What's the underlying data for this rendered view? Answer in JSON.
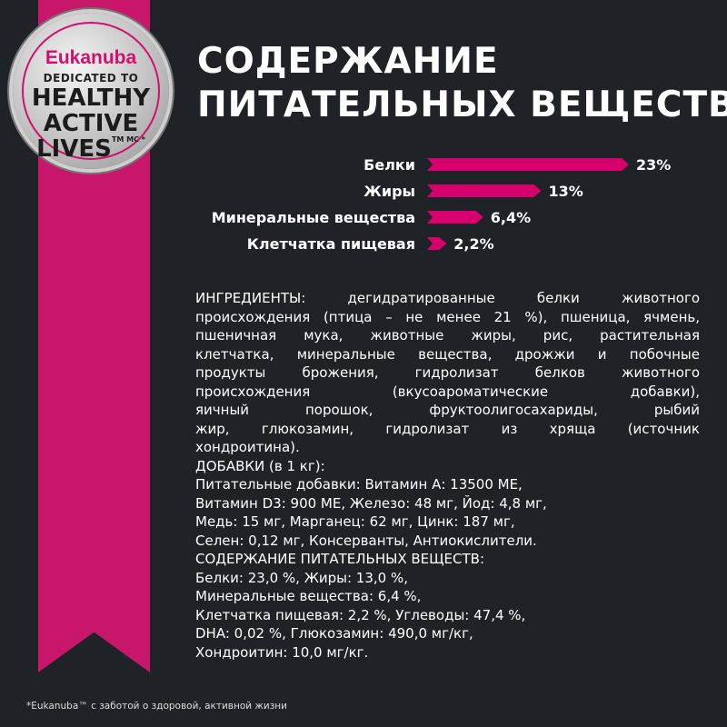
{
  "badge": {
    "brand": "Eukanuba",
    "dedicated": "DEDICATED TO",
    "line1": "HEALTHY",
    "line2": "ACTIVE",
    "line3": "LIVES",
    "tm": "TM MC *"
  },
  "title": {
    "line1": "СОДЕРЖАНИЕ",
    "line2": "ПИТАТЕЛЬНЫХ ВЕЩЕСТВ"
  },
  "colors": {
    "background": "#1f2226",
    "accent": "#d6006e",
    "ribbon": "#c8176b"
  },
  "chart_data": {
    "type": "bar",
    "orientation": "horizontal",
    "categories": [
      "Белки",
      "Жиры",
      "Минеральные вещества",
      "Клетчатка пищевая"
    ],
    "values": [
      23,
      13,
      6.4,
      2.2
    ],
    "labels": [
      "23%",
      "13%",
      "6,4%",
      "2,2%"
    ],
    "unit": "%"
  },
  "ingredients": {
    "lines": [
      {
        "t": "ИНГРЕДИЕНТЫ: дегидратированные белки животного",
        "j": true
      },
      {
        "t": "происхождения (птица – не менее 21 %), пшеница, ячмень,",
        "j": true
      },
      {
        "t": "пшеничная мука, животные жиры, рис, растительная",
        "j": true
      },
      {
        "t": "клетчатка, минеральные вещества, дрожжи и побочные",
        "j": true
      },
      {
        "t": "продукты брожения, гидролизат белков животного",
        "j": true
      },
      {
        "t": "происхождения (вкусоароматические добавки),",
        "j": true
      },
      {
        "t": "яичный порошок, фруктоолигосахариды, рыбий",
        "j": true
      },
      {
        "t": "жир, глюкозамин, гидролизат из хряща (источник",
        "j": true
      },
      {
        "t": "хондроитина).",
        "j": false
      },
      {
        "t": "ДОБАВКИ (в 1 кг):",
        "j": false
      },
      {
        "t": "Питательные добавки: Витамин А: 13500 МЕ,",
        "j": false
      },
      {
        "t": "Витамин D3: 900 МЕ, Железо: 48 мг, Йод: 4,8 мг,",
        "j": false
      },
      {
        "t": "Медь: 15 мг, Марганец: 62 мг, Цинк: 187 мг,",
        "j": false
      },
      {
        "t": "Селен: 0,12 мг, Консерванты, Антиокислители.",
        "j": false
      },
      {
        "t": "СОДЕРЖАНИЕ ПИТАТЕЛЬНЫХ ВЕЩЕСТВ:",
        "j": false
      },
      {
        "t": "Белки: 23,0 %, Жиры: 13,0 %,",
        "j": false
      },
      {
        "t": "Минеральные вещества: 6,4 %,",
        "j": false
      },
      {
        "t": "Клетчатка пищевая: 2,2 %, Углеводы: 47,4 %,",
        "j": false
      },
      {
        "t": "DHA: 0,02 %, Глюкозамин: 490,0 мг/кг,",
        "j": false
      },
      {
        "t": "Хондроитин: 10,0 мг/кг.",
        "j": false
      }
    ]
  },
  "footnote": "*Eukanuba™ с заботой о здоровой, активной жизни"
}
